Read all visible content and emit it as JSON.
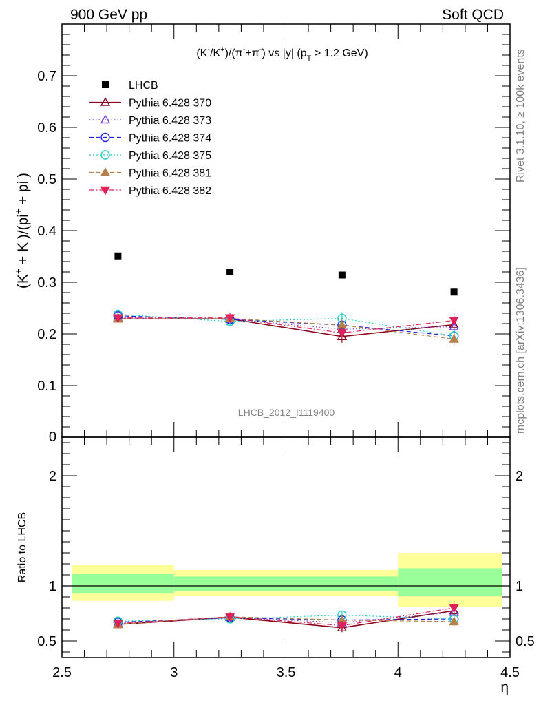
{
  "header": {
    "left": "900 GeV pp",
    "right": "Soft QCD"
  },
  "side_labels": {
    "rivet": "Rivet 3.1.10, ≥ 100k events",
    "mcplots": "mcplots.cern.ch [arXiv:1306.3436]"
  },
  "watermark": "LHCB_2012_I1119400",
  "chart_data": [
    {
      "type": "scatter",
      "title_parts": {
        "a": "(K",
        "b": "-",
        "c": "/K",
        "d": "+",
        "e": ")/(π",
        "f": "-",
        "g": "+π",
        "h": "-",
        "i": ") vs |y| (p",
        "j": "T",
        "k": " > 1.2 GeV)"
      },
      "ylabel_parts": {
        "a": "(K",
        "b": "+",
        "c": " + K",
        "d": "-",
        "e": ")/(pi",
        "f": "+",
        "g": " + pi",
        "h": "-",
        "i": ")"
      },
      "xlim": [
        2.5,
        4.5
      ],
      "ylim": [
        0,
        0.8
      ],
      "yticks": [
        {
          "v": 0.1,
          "label": "0.1"
        },
        {
          "v": 0.2,
          "label": "0.2"
        },
        {
          "v": 0.3,
          "label": "0.3"
        },
        {
          "v": 0.4,
          "label": "0.4"
        },
        {
          "v": 0.5,
          "label": "0.5"
        },
        {
          "v": 0.6,
          "label": "0.6"
        },
        {
          "v": 0.7,
          "label": "0.7"
        }
      ],
      "y_zero_label": "0",
      "x": [
        2.75,
        3.25,
        3.75,
        4.25
      ],
      "data": {
        "name": "LHCB",
        "values": [
          0.351,
          0.32,
          0.314,
          0.281
        ]
      },
      "series": [
        {
          "name": "Pythia 6.428 370",
          "color": "#8b0019",
          "marker": "triangle-up-open",
          "dash": "",
          "values": [
            0.229,
            0.229,
            0.195,
            0.218
          ],
          "err": [
            0.007,
            0.008,
            0.012,
            0.014
          ]
        },
        {
          "name": "Pythia 6.428 373",
          "color": "#7b3fd6",
          "marker": "triangle-up-open",
          "dash": "1.5,3",
          "values": [
            0.231,
            0.229,
            0.209,
            0.214
          ],
          "err": [
            0.006,
            0.008,
            0.012,
            0.014
          ]
        },
        {
          "name": "Pythia 6.428 374",
          "color": "#1f1fdb",
          "marker": "circle-open",
          "dash": "6,4",
          "values": [
            0.235,
            0.228,
            0.217,
            0.196
          ],
          "err": [
            0.006,
            0.008,
            0.01,
            0.012
          ]
        },
        {
          "name": "Pythia 6.428 375",
          "color": "#21cfc2",
          "marker": "circle-open",
          "dash": "2,3",
          "values": [
            0.238,
            0.224,
            0.23,
            0.196
          ],
          "err": [
            0.007,
            0.009,
            0.012,
            0.012
          ]
        },
        {
          "name": "Pythia 6.428 381",
          "color": "#b5804a",
          "marker": "triangle-up-filled",
          "dash": "6,4",
          "values": [
            0.229,
            0.23,
            0.217,
            0.19
          ],
          "err": [
            0.006,
            0.009,
            0.012,
            0.014
          ]
        },
        {
          "name": "Pythia 6.428 382",
          "color": "#e0225a",
          "marker": "triangle-down-filled",
          "dash": "7,3,1.5,3",
          "values": [
            0.231,
            0.231,
            0.202,
            0.226
          ],
          "err": [
            0.006,
            0.009,
            0.012,
            0.016
          ]
        }
      ]
    },
    {
      "type": "scatter",
      "ylabel": "Ratio to LHCB",
      "xlabel": "η",
      "xlim": [
        2.5,
        4.5
      ],
      "ylim": [
        0.35,
        2.35
      ],
      "yticks_left": [
        {
          "v": 0.5,
          "label": "0.5"
        },
        {
          "v": 1,
          "label": "1"
        },
        {
          "v": 2,
          "label": "2"
        }
      ],
      "yticks_right": [
        {
          "v": 0.5,
          "label": "0.5"
        },
        {
          "v": 1,
          "label": "1"
        },
        {
          "v": 2,
          "label": "2"
        }
      ],
      "xticks": [
        {
          "v": 2.5,
          "label": "2.5"
        },
        {
          "v": 3,
          "label": "3"
        },
        {
          "v": 3.5,
          "label": "3.5"
        },
        {
          "v": 4,
          "label": "4"
        },
        {
          "v": 4.5,
          "label": "4.5"
        }
      ],
      "bands": [
        {
          "x": [
            2.5,
            3.0
          ],
          "yellow": [
            0.865,
            1.19
          ],
          "green": [
            0.93,
            1.11
          ]
        },
        {
          "x": [
            3.0,
            4.0
          ],
          "yellow": [
            0.905,
            1.145
          ],
          "green": [
            0.95,
            1.085
          ]
        },
        {
          "x": [
            4.0,
            4.5
          ],
          "yellow": [
            0.81,
            1.3
          ],
          "green": [
            0.905,
            1.16
          ]
        }
      ],
      "x": [
        2.75,
        3.25,
        3.75,
        4.25
      ],
      "series": [
        {
          "name": "Pythia 6.428 370",
          "values": [
            0.65,
            0.715,
            0.62,
            0.775
          ],
          "err": [
            0.02,
            0.025,
            0.04,
            0.05
          ]
        },
        {
          "name": "Pythia 6.428 373",
          "values": [
            0.66,
            0.715,
            0.665,
            0.76
          ],
          "err": [
            0.02,
            0.025,
            0.04,
            0.05
          ]
        },
        {
          "name": "Pythia 6.428 374",
          "values": [
            0.67,
            0.71,
            0.69,
            0.7
          ],
          "err": [
            0.02,
            0.025,
            0.035,
            0.045
          ]
        },
        {
          "name": "Pythia 6.428 375",
          "values": [
            0.68,
            0.7,
            0.735,
            0.7
          ],
          "err": [
            0.02,
            0.03,
            0.04,
            0.045
          ]
        },
        {
          "name": "Pythia 6.428 381",
          "values": [
            0.65,
            0.72,
            0.69,
            0.675
          ],
          "err": [
            0.02,
            0.03,
            0.04,
            0.05
          ]
        },
        {
          "name": "Pythia 6.428 382",
          "values": [
            0.66,
            0.72,
            0.64,
            0.8
          ],
          "err": [
            0.02,
            0.03,
            0.04,
            0.06
          ]
        }
      ]
    }
  ]
}
